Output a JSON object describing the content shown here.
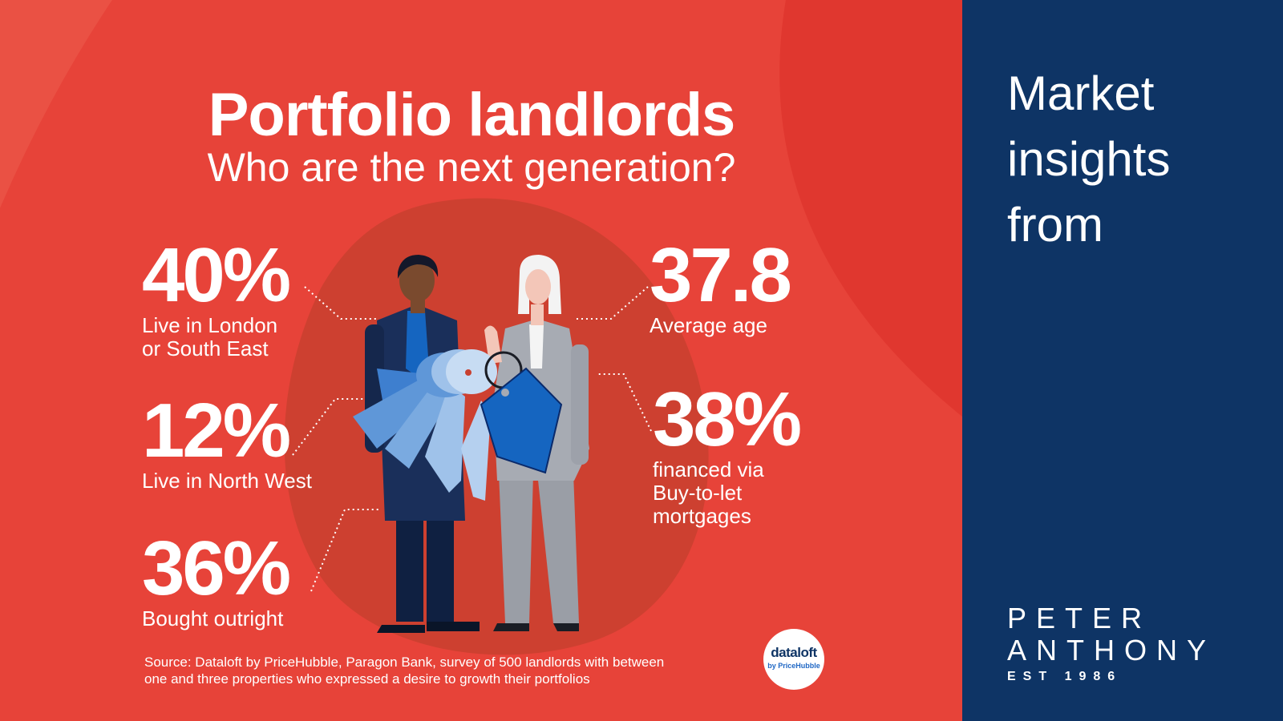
{
  "headline": {
    "title": "Portfolio landlords",
    "subtitle": "Who are the next generation?"
  },
  "stats": {
    "london": {
      "value": "40%",
      "label_line1": "Live in London",
      "label_line2": "or South East"
    },
    "north_west": {
      "value": "12%",
      "label_line1": "Live in North West"
    },
    "outright": {
      "value": "36%",
      "label_line1": "Bought outright"
    },
    "age": {
      "value": "37.8",
      "label_line1": "Average age"
    },
    "btl": {
      "value": "38%",
      "label_line1": "financed via",
      "label_line2": "Buy-to-let",
      "label_line3": "mortgages"
    }
  },
  "source": {
    "line1": "Source: Dataloft by PriceHubble, Paragon Bank, survey of 500 landlords with between",
    "line2": "one and three properties who expressed a desire to growth their portfolios"
  },
  "dataloft_logo": {
    "word": "dataloft",
    "sub": "by PriceHubble"
  },
  "sidebar": {
    "line1": "Market",
    "line2": "insights",
    "line3": "from"
  },
  "brand": {
    "peter": "PETER",
    "anthony": "ANTHONY",
    "est": "EST 1986"
  },
  "colors": {
    "background_red": "#e63c33",
    "panel_navy": "#0e3465",
    "key_blue": "#1565c0"
  },
  "icons": [
    "keys-illustration",
    "house-keyring-icon",
    "man-figure",
    "woman-figure"
  ]
}
